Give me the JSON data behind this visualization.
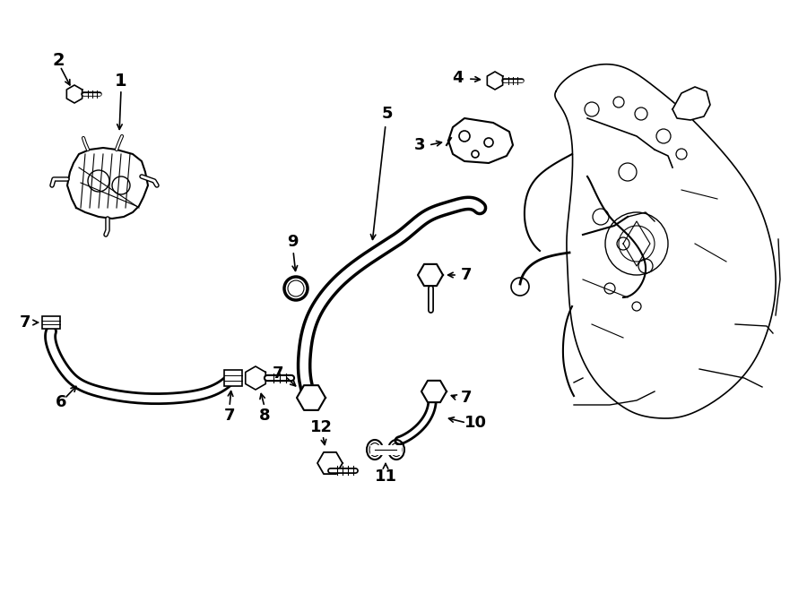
{
  "background_color": "#ffffff",
  "line_color": "#000000",
  "fig_width": 9.0,
  "fig_height": 6.62,
  "dpi": 100
}
